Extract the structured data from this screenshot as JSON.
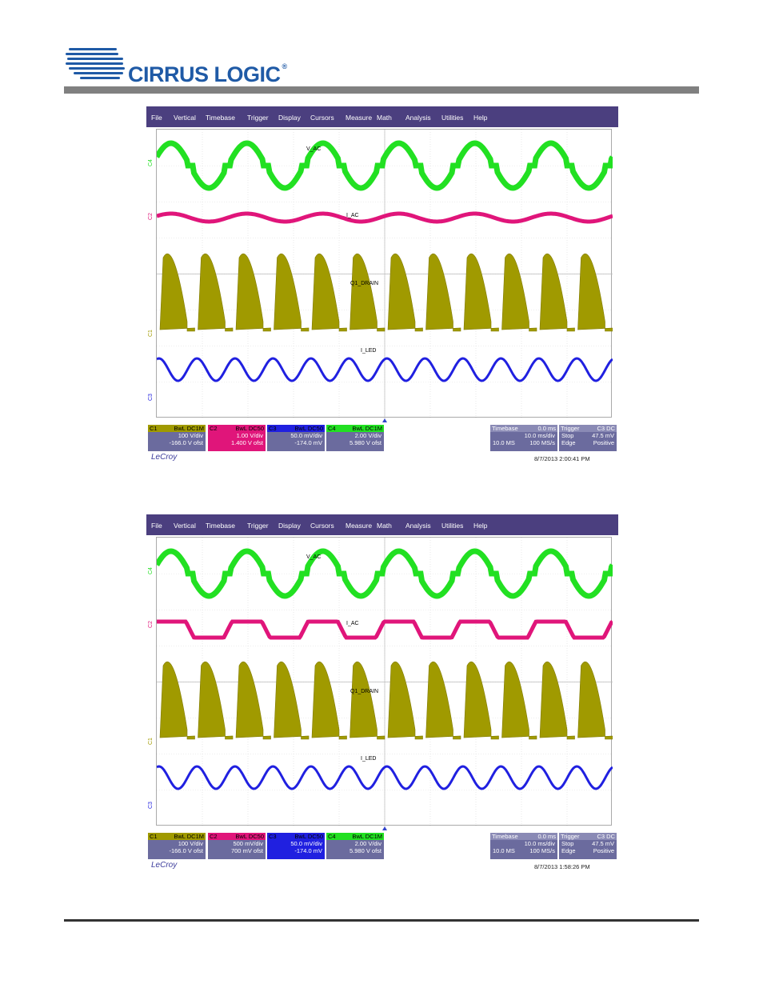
{
  "header": {
    "logo_text": "CIRRUS LOGIC",
    "logo_reg": "®"
  },
  "colors": {
    "c1": "#a09a00",
    "c2": "#e0157a",
    "c3": "#2020e0",
    "c4": "#22e022",
    "menu": "#4b3f7f",
    "box": "#6b6b9e"
  },
  "menu": [
    "File",
    "Vertical",
    "Timebase",
    "Trigger",
    "Display",
    "Cursors",
    "Measure",
    "Math",
    "Analysis",
    "Utilities",
    "Help"
  ],
  "scopes": [
    {
      "labels": {
        "v": "V_AC",
        "i": "I_AC",
        "d": "Q1_DRAIN",
        "l": "I_LED"
      },
      "channels": [
        {
          "id": "C1",
          "head": "BwL DC1M",
          "scale": "100 V/div",
          "offset": "-166.0 V ofst"
        },
        {
          "id": "C2",
          "head": "BwL DC50",
          "scale": "1.00 V/div",
          "offset": "1.400 V ofst"
        },
        {
          "id": "C3",
          "head": "BwL DC50",
          "scale": "50.0 mV/div",
          "offset": "-174.0 mV"
        },
        {
          "id": "C4",
          "head": "BwL DC1M",
          "scale": "2.00 V/div",
          "offset": "5.980 V ofst"
        }
      ],
      "timebase": {
        "label": "Timebase",
        "delay": "0.0 ms",
        "div": "10.0 ms/div",
        "samples": "10.0 MS",
        "rate": "100 MS/s"
      },
      "trigger": {
        "label": "Trigger",
        "src": "C3 DC",
        "mode": "Stop",
        "level": "47.5 mV",
        "type": "Edge",
        "slope": "Positive"
      },
      "brand": "LeCroy",
      "timestamp": "8/7/2013 2:00:41 PM"
    },
    {
      "labels": {
        "v": "V_AC",
        "i": "I_AC",
        "d": "Q1_DRAIN",
        "l": "I_LED"
      },
      "channels": [
        {
          "id": "C1",
          "head": "BwL DC1M",
          "scale": "100 V/div",
          "offset": "-166.0 V ofst"
        },
        {
          "id": "C2",
          "head": "BwL DC50",
          "scale": "500 mV/div",
          "offset": "700 mV ofst"
        },
        {
          "id": "C3",
          "head": "BwL DC50",
          "scale": "50.0 mV/div",
          "offset": "-174.0 mV"
        },
        {
          "id": "C4",
          "head": "BwL DC1M",
          "scale": "2.00 V/div",
          "offset": "5.980 V ofst"
        }
      ],
      "timebase": {
        "label": "Timebase",
        "delay": "0.0 ms",
        "div": "10.0 ms/div",
        "samples": "10.0 MS",
        "rate": "100 MS/s"
      },
      "trigger": {
        "label": "Trigger",
        "src": "C3 DC",
        "mode": "Stop",
        "level": "47.5 mV",
        "type": "Edge",
        "slope": "Positive"
      },
      "brand": "LeCroy",
      "timestamp": "8/7/2013 1:58:26 PM"
    }
  ],
  "chart_data": [
    {
      "type": "line",
      "series": [
        {
          "name": "V_AC",
          "cycles": 6
        },
        {
          "name": "I_AC",
          "cycles": 6
        },
        {
          "name": "Q1_DRAIN",
          "cycles": 12
        },
        {
          "name": "I_LED",
          "cycles": 12
        }
      ],
      "x_div": "10.0 ms/div",
      "grid": true
    },
    {
      "type": "line",
      "series": [
        {
          "name": "V_AC",
          "cycles": 6
        },
        {
          "name": "I_AC",
          "cycles": 6
        },
        {
          "name": "Q1_DRAIN",
          "cycles": 12
        },
        {
          "name": "I_LED",
          "cycles": 12
        }
      ],
      "x_div": "10.0 ms/div",
      "grid": true
    }
  ]
}
